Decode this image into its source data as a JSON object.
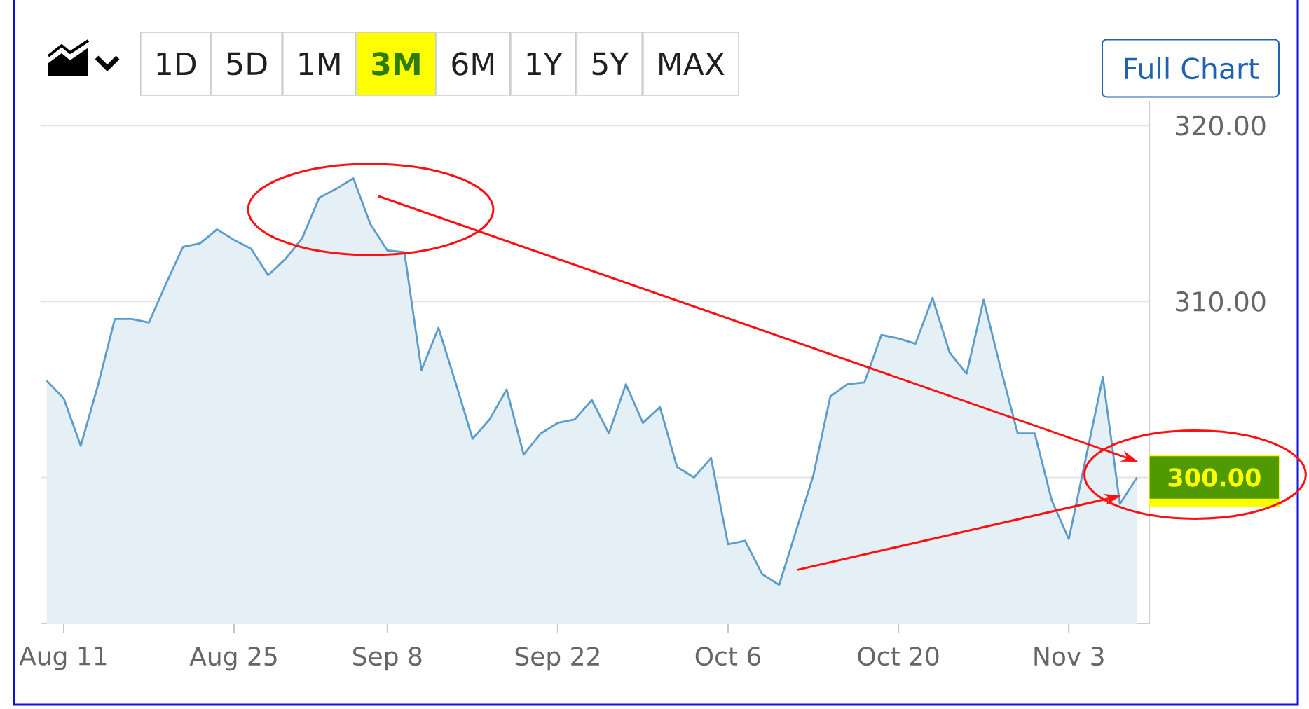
{
  "chart_data": {
    "type": "area",
    "categories": [
      null,
      "Aug 11",
      null,
      null,
      null,
      null,
      null,
      null,
      null,
      null,
      null,
      "Aug 25",
      null,
      null,
      null,
      null,
      null,
      null,
      null,
      null,
      "Sep 8",
      null,
      null,
      null,
      null,
      null,
      null,
      null,
      null,
      null,
      "Sep 22",
      null,
      null,
      null,
      null,
      null,
      null,
      null,
      null,
      null,
      "Oct 6",
      null,
      null,
      null,
      null,
      null,
      null,
      null,
      null,
      null,
      "Oct 20",
      null,
      null,
      null,
      null,
      null,
      null,
      null,
      null,
      null,
      "Nov 3",
      null,
      null,
      null,
      null
    ],
    "values": [
      305.5,
      304.5,
      301.8,
      305.2,
      309.0,
      309.0,
      308.8,
      311.0,
      313.1,
      313.3,
      314.1,
      313.5,
      313.0,
      311.5,
      312.4,
      313.6,
      315.9,
      316.4,
      317.0,
      314.4,
      312.9,
      312.8,
      306.1,
      308.5,
      305.4,
      302.2,
      303.3,
      305.0,
      301.3,
      302.5,
      303.1,
      303.3,
      304.4,
      302.5,
      305.3,
      303.1,
      304.0,
      300.6,
      300.0,
      301.1,
      296.2,
      296.4,
      294.5,
      293.9,
      297.0,
      300.1,
      304.6,
      305.3,
      305.4,
      308.1,
      307.9,
      307.6,
      310.2,
      307.1,
      305.9,
      310.1,
      306.2,
      302.5,
      302.5,
      298.7,
      296.5,
      301.1,
      305.7,
      298.5,
      300.0
    ],
    "color": "#5b9cc9",
    "ylim": [
      291.7,
      321.4
    ],
    "yticks": [
      {
        "value": 300,
        "label": null
      },
      {
        "value": 310,
        "label": "310.00"
      },
      {
        "value": 320,
        "label": "320.00"
      }
    ],
    "grid": "y",
    "annotations": [
      "1D",
      "5D",
      "1M",
      "3M",
      "6M",
      "1Y",
      "5Y",
      "MAX",
      "Full Chart",
      "300.00"
    ]
  }
}
